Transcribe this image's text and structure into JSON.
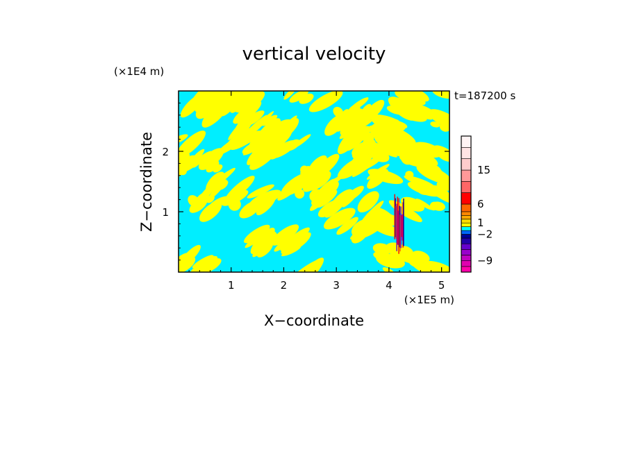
{
  "chart_data": {
    "type": "heatmap",
    "title": "vertical velocity",
    "xlabel": "X−coordinate",
    "ylabel": "Z−coordinate",
    "x_unit": "(×1E5 m)",
    "y_unit": "(×1E4 m)",
    "time_label": "t=187200 s",
    "xlim": [
      0,
      5.15
    ],
    "ylim": [
      0,
      3.0
    ],
    "x_ticks": [
      1,
      2,
      3,
      4,
      5
    ],
    "y_ticks": [
      1,
      2
    ],
    "x_tick_labels": [
      "1",
      "2",
      "3",
      "4",
      "5"
    ],
    "y_tick_labels": [
      "1",
      "2"
    ],
    "colorbar": {
      "levels": [
        -12,
        -10.5,
        -9,
        -7.5,
        -6,
        -4.5,
        -3,
        -2,
        -1,
        0,
        1,
        2,
        3,
        4,
        6,
        9,
        12,
        15,
        18,
        21,
        24
      ],
      "colors": [
        "#ff00aa",
        "#e000b0",
        "#c000c0",
        "#9900cc",
        "#6600cc",
        "#2200aa",
        "#000099",
        "#0066ff",
        "#00ffff",
        "#ffff00",
        "#ffdd00",
        "#ffaa00",
        "#ff8800",
        "#ff6600",
        "#ff0000",
        "#ff6666",
        "#ff9999",
        "#ffcccc",
        "#ffe4e4",
        "#fff4f4"
      ],
      "tick_labels": [
        "15",
        "6",
        "1",
        "−2",
        "−9"
      ],
      "tick_values": [
        15,
        6,
        1,
        -2,
        -9
      ]
    },
    "dominant_field": {
      "positive_color": "#ffff00",
      "negative_color": "#00eeff",
      "updraft_core_x": 4.2,
      "updraft_core_z_range": [
        0.3,
        1.3
      ]
    }
  }
}
